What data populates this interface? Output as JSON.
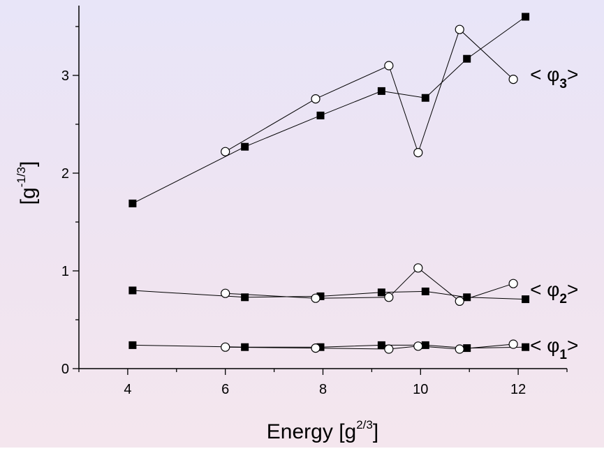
{
  "chart_data": {
    "type": "line",
    "xlabel": "Energy",
    "xlabel_unit": {
      "base": "[g",
      "sup": "2/3",
      "close": "]"
    },
    "ylabel_unit": {
      "base": "[g",
      "sup": "-1/3",
      "close": "]"
    },
    "xlim": [
      3.0,
      13.0
    ],
    "ylim": [
      0.0,
      3.6
    ],
    "xticks": [
      4,
      6,
      8,
      10,
      12
    ],
    "yticks": [
      0,
      1,
      2,
      3
    ],
    "grid": false,
    "legend": "none",
    "series_groups": [
      {
        "label": {
          "open": "< ",
          "symbol": "φ",
          "sub": "3",
          "close": ">"
        },
        "label_at": [
          12.3,
          3.0
        ],
        "series": [
          {
            "marker": "filled-square",
            "x": [
              4.1,
              6.4,
              7.95,
              9.2,
              10.1,
              10.95,
              12.15
            ],
            "y": [
              1.69,
              2.27,
              2.59,
              2.84,
              2.77,
              3.17,
              3.6
            ]
          },
          {
            "marker": "open-circle",
            "x": [
              6.0,
              7.85,
              9.35,
              9.95,
              10.8,
              11.9
            ],
            "y": [
              2.22,
              2.76,
              3.1,
              2.21,
              3.47,
              2.96
            ]
          }
        ]
      },
      {
        "label": {
          "open": "< ",
          "symbol": "φ",
          "sub": "2",
          "close": ">"
        },
        "label_at": [
          12.3,
          0.8
        ],
        "series": [
          {
            "marker": "filled-square",
            "x": [
              4.1,
              6.4,
              7.95,
              9.2,
              10.1,
              10.95,
              12.15
            ],
            "y": [
              0.8,
              0.73,
              0.74,
              0.78,
              0.79,
              0.73,
              0.71
            ]
          },
          {
            "marker": "open-circle",
            "x": [
              6.0,
              7.85,
              9.35,
              9.95,
              10.8,
              11.9
            ],
            "y": [
              0.77,
              0.72,
              0.73,
              1.03,
              0.69,
              0.87
            ]
          }
        ]
      },
      {
        "label": {
          "open": "< ",
          "symbol": "φ",
          "sub": "1",
          "close": ">"
        },
        "label_at": [
          12.3,
          0.23
        ],
        "series": [
          {
            "marker": "filled-square",
            "x": [
              4.1,
              6.4,
              7.95,
              9.2,
              10.1,
              10.95,
              12.15
            ],
            "y": [
              0.24,
              0.22,
              0.22,
              0.24,
              0.24,
              0.21,
              0.22
            ]
          },
          {
            "marker": "open-circle",
            "x": [
              6.0,
              7.85,
              9.35,
              9.95,
              10.8,
              11.9
            ],
            "y": [
              0.22,
              0.21,
              0.2,
              0.23,
              0.2,
              0.25
            ]
          }
        ]
      }
    ]
  }
}
